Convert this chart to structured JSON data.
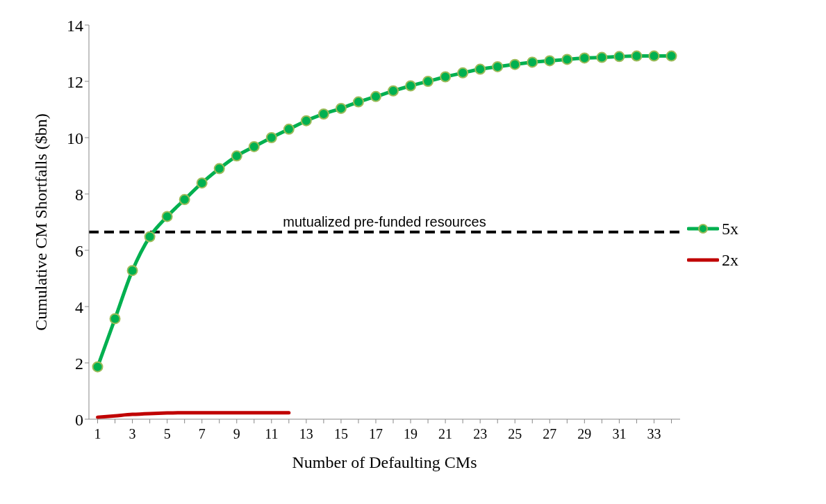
{
  "chart_data": {
    "type": "line",
    "xlabel": "Number of Defaulting CMs",
    "ylabel": "Cumulative CM Shortfalls ($bn)",
    "x": [
      1,
      2,
      3,
      4,
      5,
      6,
      7,
      8,
      9,
      10,
      11,
      12,
      13,
      14,
      15,
      16,
      17,
      18,
      19,
      20,
      21,
      22,
      23,
      24,
      25,
      26,
      27,
      28,
      29,
      30,
      31,
      32,
      33,
      34
    ],
    "xlim": [
      0.5,
      34.5
    ],
    "xticks": [
      1,
      {
        "value": 2,
        "label": null
      },
      3,
      {
        "value": 4,
        "label": null
      },
      5,
      {
        "value": 6,
        "label": null
      },
      7,
      {
        "value": 8,
        "label": null
      },
      9,
      {
        "value": 10,
        "label": null
      },
      11,
      {
        "value": 12,
        "label": null
      },
      13,
      {
        "value": 14,
        "label": null
      },
      15,
      {
        "value": 16,
        "label": null
      },
      17,
      {
        "value": 18,
        "label": null
      },
      19,
      {
        "value": 20,
        "label": null
      },
      21,
      {
        "value": 22,
        "label": null
      },
      23,
      {
        "value": 24,
        "label": null
      },
      25,
      {
        "value": 26,
        "label": null
      },
      27,
      {
        "value": 28,
        "label": null
      },
      29,
      {
        "value": 30,
        "label": null
      },
      31,
      {
        "value": 32,
        "label": null
      },
      33,
      {
        "value": 34,
        "label": null
      }
    ],
    "series": [
      {
        "name": "5x",
        "color": "#00b050",
        "marker": "circle",
        "values": [
          1.86,
          3.57,
          5.28,
          6.48,
          7.2,
          7.8,
          8.39,
          8.9,
          9.35,
          9.68,
          10.0,
          10.3,
          10.6,
          10.84,
          11.04,
          11.27,
          11.46,
          11.66,
          11.84,
          12.0,
          12.16,
          12.3,
          12.43,
          12.52,
          12.6,
          12.68,
          12.73,
          12.78,
          12.83,
          12.85,
          12.88,
          12.9,
          12.9,
          12.9
        ]
      },
      {
        "name": "2x",
        "color": "#c00000",
        "marker": "none",
        "values": [
          0.07,
          0.12,
          0.17,
          0.2,
          0.22,
          0.23,
          0.23,
          0.23,
          0.23,
          0.23,
          0.23,
          0.23,
          null,
          null,
          null,
          null,
          null,
          null,
          null,
          null,
          null,
          null,
          null,
          null,
          null,
          null,
          null,
          null,
          null,
          null,
          null,
          null,
          null,
          null
        ]
      }
    ],
    "ylim": [
      0,
      14
    ],
    "yticks": [
      0,
      2,
      4,
      6,
      8,
      10,
      12,
      14
    ],
    "grid": false,
    "legend": "right",
    "ref_lines": [
      {
        "axis": "y",
        "value": 6.65,
        "label": "mutualized pre-funded resources",
        "color": "#000000",
        "line_style": "dashed"
      }
    ]
  }
}
